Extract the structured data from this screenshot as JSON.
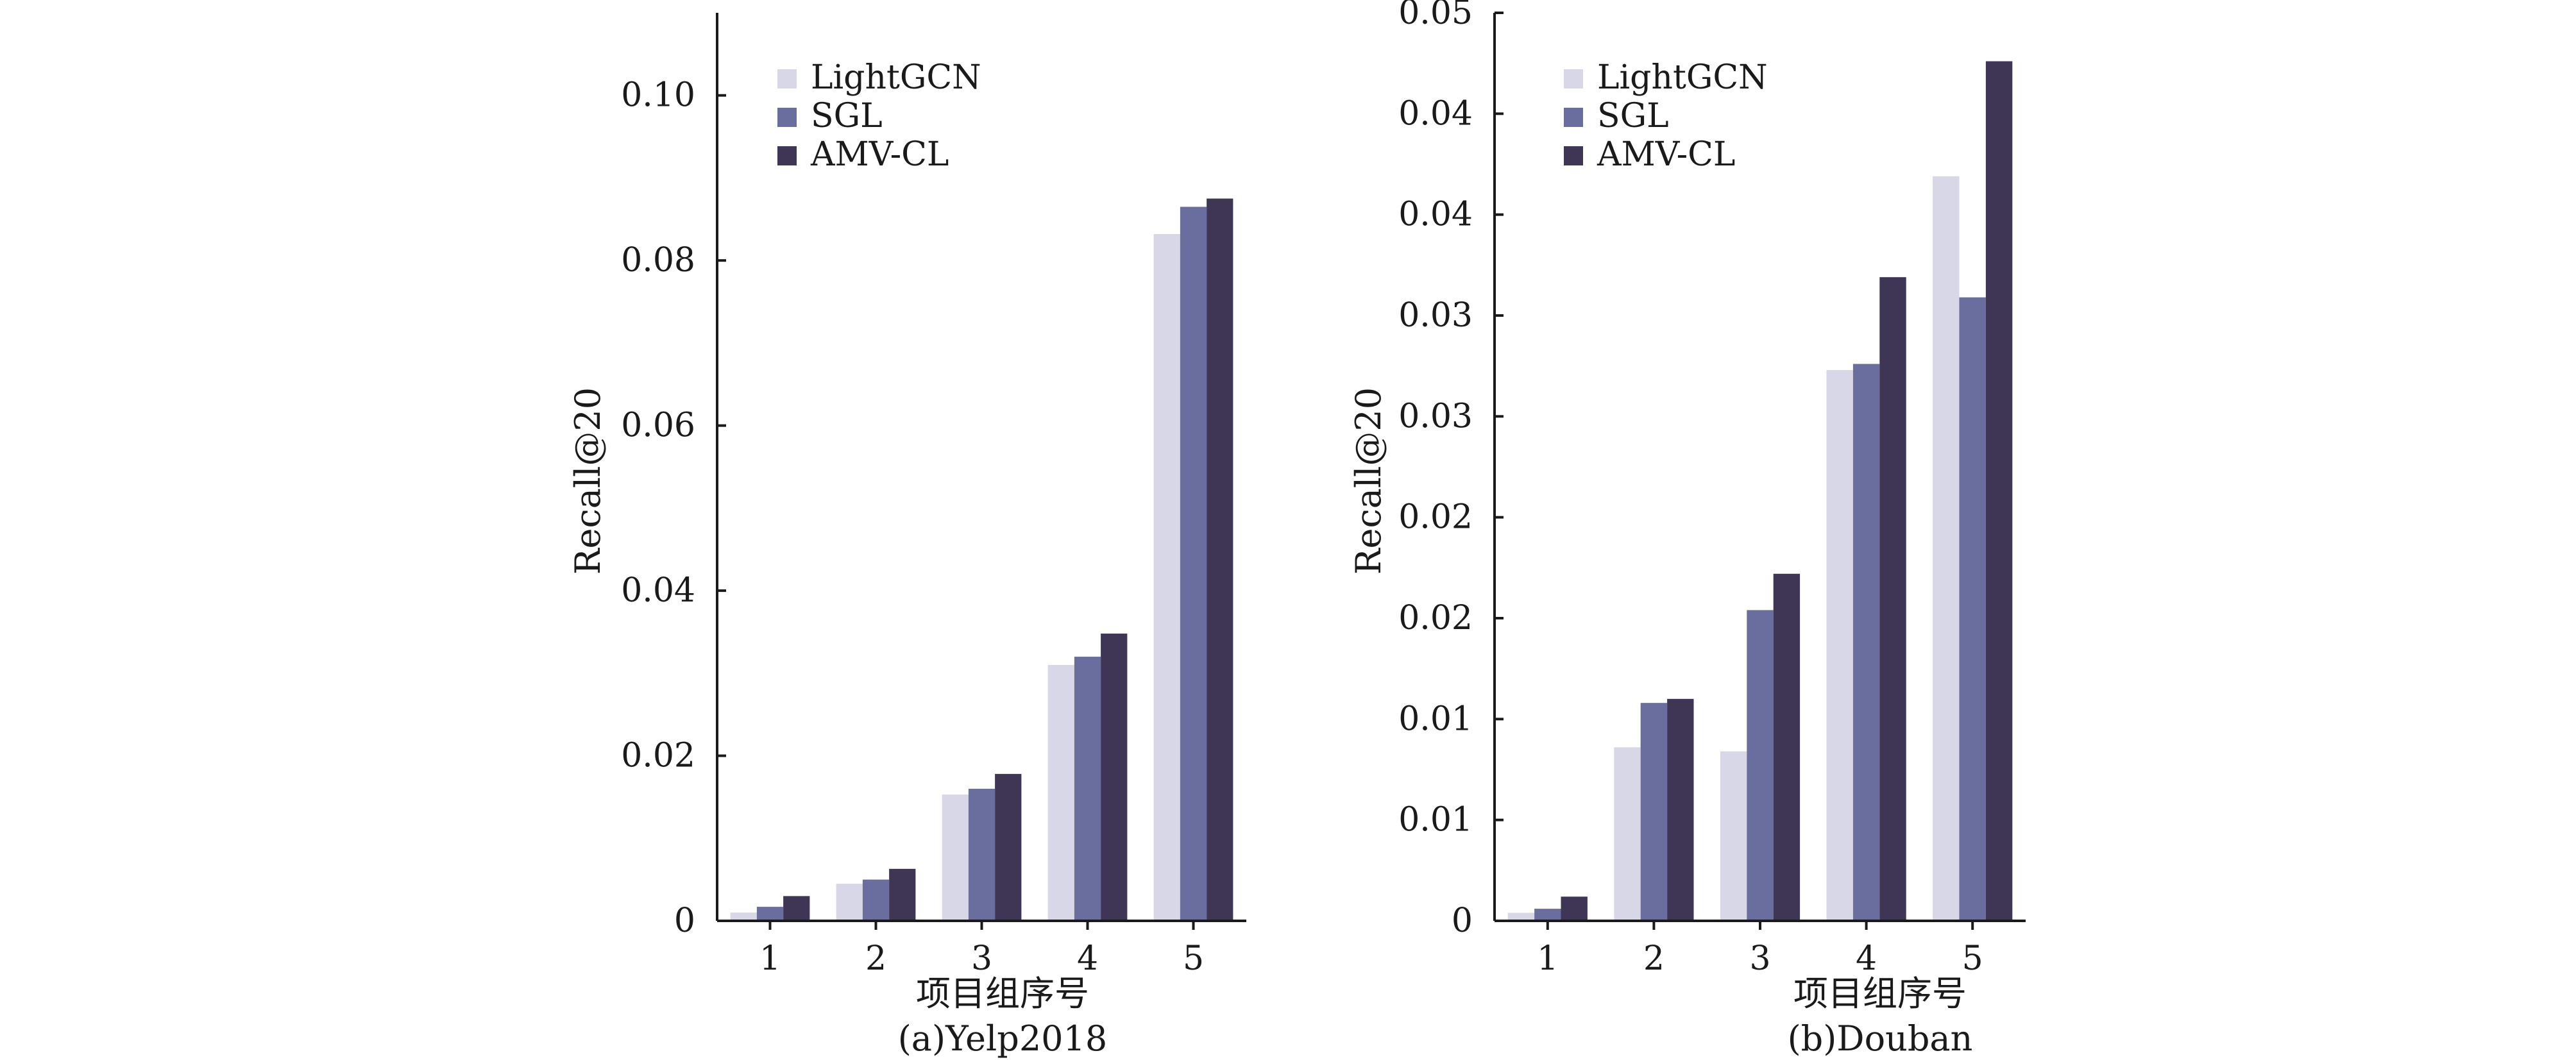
{
  "chart_data": [
    {
      "type": "bar",
      "caption": "(a)Yelp2018",
      "xlabel": "项目组序号",
      "ylabel": "Recall@20",
      "categories": [
        "1",
        "2",
        "3",
        "4",
        "5"
      ],
      "ylim": [
        0,
        0.11
      ],
      "yticks": [
        0,
        0.02,
        0.04,
        0.06,
        0.08,
        0.1
      ],
      "ytick_labels": [
        "0",
        "0.02",
        "0.04",
        "0.06",
        "0.08",
        "0.10"
      ],
      "grid": false,
      "legend_position": "top-left",
      "series": [
        {
          "name": "LightGCN",
          "color": "#d8d7e8",
          "values": [
            0.001,
            0.0045,
            0.0153,
            0.031,
            0.0832
          ]
        },
        {
          "name": "SGL",
          "color": "#6a6e9e",
          "values": [
            0.0017,
            0.005,
            0.016,
            0.032,
            0.0865
          ]
        },
        {
          "name": "AMV-CL",
          "color": "#3f3656",
          "values": [
            0.003,
            0.0063,
            0.0178,
            0.0348,
            0.0875
          ]
        }
      ]
    },
    {
      "type": "bar",
      "caption": "(b)Douban",
      "xlabel": "项目组序号",
      "ylabel": "Recall@20",
      "categories": [
        "1",
        "2",
        "3",
        "4",
        "5"
      ],
      "ylim": [
        0,
        0.045
      ],
      "yticks": [
        0,
        0.005,
        0.01,
        0.015,
        0.02,
        0.025,
        0.03,
        0.035,
        0.04,
        0.045
      ],
      "ytick_labels": [
        "0",
        "0.01",
        "0.01",
        "0.02",
        "0.02",
        "0.03",
        "0.03",
        "0.04",
        "0.04",
        "0.05"
      ],
      "grid": false,
      "legend_position": "top-left",
      "series": [
        {
          "name": "LightGCN",
          "color": "#d8d7e8",
          "values": [
            0.0004,
            0.0086,
            0.0084,
            0.0273,
            0.0369
          ]
        },
        {
          "name": "SGL",
          "color": "#6a6e9e",
          "values": [
            0.0006,
            0.0108,
            0.0154,
            0.0276,
            0.0309
          ]
        },
        {
          "name": "AMV-CL",
          "color": "#3f3656",
          "values": [
            0.0012,
            0.011,
            0.0172,
            0.0319,
            0.0426
          ]
        }
      ]
    }
  ]
}
